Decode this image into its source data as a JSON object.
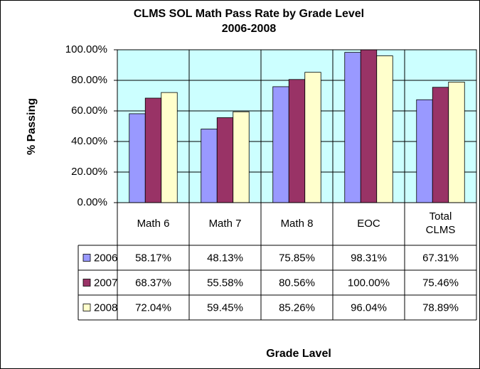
{
  "chart_data": {
    "type": "bar",
    "title": "CLMS SOL Math Pass Rate by Grade Level",
    "subtitle": "2006-2008",
    "y_label": "% Passing",
    "x_label": "Grade Lavel",
    "categories": [
      "Math 6",
      "Math 7",
      "Math 8",
      "EOC",
      "Total CLMS"
    ],
    "series": [
      {
        "name": "2006",
        "color": "#9999ff",
        "values": [
          58.17,
          48.13,
          75.85,
          98.31,
          67.31
        ],
        "value_labels": [
          "58.17%",
          "48.13%",
          "75.85%",
          "98.31%",
          "67.31%"
        ]
      },
      {
        "name": "2007",
        "color": "#993366",
        "values": [
          68.37,
          55.58,
          80.56,
          100,
          75.46
        ],
        "value_labels": [
          "68.37%",
          "55.58%",
          "80.56%",
          "100.00%",
          "75.46%"
        ]
      },
      {
        "name": "2008",
        "color": "#ffffcc",
        "values": [
          72.04,
          59.45,
          85.26,
          96.04,
          78.89
        ],
        "value_labels": [
          "72.04%",
          "59.45%",
          "85.26%",
          "96.04%",
          "78.89%"
        ]
      }
    ],
    "ylim": [
      0,
      100
    ],
    "yticks": [
      {
        "value": 0,
        "label": "0.00%"
      },
      {
        "value": 20,
        "label": "20.00%"
      },
      {
        "value": 40,
        "label": "40.00%"
      },
      {
        "value": 60,
        "label": "60.00%"
      },
      {
        "value": 80,
        "label": "80.00%"
      },
      {
        "value": 100,
        "label": "100.00%"
      }
    ],
    "grid": true,
    "plot_background": "#ccffff"
  }
}
